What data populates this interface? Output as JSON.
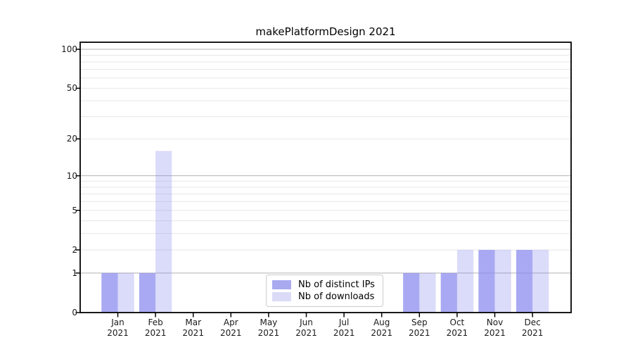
{
  "figure": {
    "background": "#ffffff"
  },
  "chart_data": {
    "type": "bar",
    "title": "makePlatformDesign 2021",
    "xlabel": "",
    "ylabel": "",
    "yscale": "log1p",
    "grid": true,
    "legend_position": "bottom-center-inside",
    "categories": [
      {
        "month": "Jan",
        "year": "2021"
      },
      {
        "month": "Feb",
        "year": "2021"
      },
      {
        "month": "Mar",
        "year": "2021"
      },
      {
        "month": "Apr",
        "year": "2021"
      },
      {
        "month": "May",
        "year": "2021"
      },
      {
        "month": "Jun",
        "year": "2021"
      },
      {
        "month": "Jul",
        "year": "2021"
      },
      {
        "month": "Aug",
        "year": "2021"
      },
      {
        "month": "Sep",
        "year": "2021"
      },
      {
        "month": "Oct",
        "year": "2021"
      },
      {
        "month": "Nov",
        "year": "2021"
      },
      {
        "month": "Dec",
        "year": "2021"
      }
    ],
    "series": [
      {
        "name": "Nb of distinct IPs",
        "base_color": "#8888ee",
        "opacity": 0.72,
        "composite_color": "#a9a9f0",
        "values": [
          1,
          1,
          0,
          0,
          0,
          0,
          0,
          0,
          1,
          1,
          2,
          2
        ]
      },
      {
        "name": "Nb of downloads",
        "base_color": "#8888ee",
        "opacity": 0.3,
        "composite_color": "#dbdbf8",
        "values": [
          1,
          16,
          0,
          0,
          0,
          0,
          0,
          0,
          1,
          2,
          2,
          2
        ]
      }
    ],
    "yticks": [
      0,
      1,
      2,
      5,
      10,
      20,
      50,
      100
    ],
    "major_gridlines": [
      1,
      10,
      100
    ],
    "minor_gridlines": [
      2,
      3,
      4,
      5,
      6,
      7,
      8,
      9,
      20,
      30,
      40,
      50,
      60,
      70,
      80,
      90
    ],
    "ylim": [
      0,
      113
    ],
    "colors": {
      "spine": "#000000",
      "major_grid": "#b2b2b2",
      "minor_grid": "#e7e7e7",
      "tick_label": "#1a1a1a",
      "title": "#000000"
    }
  }
}
